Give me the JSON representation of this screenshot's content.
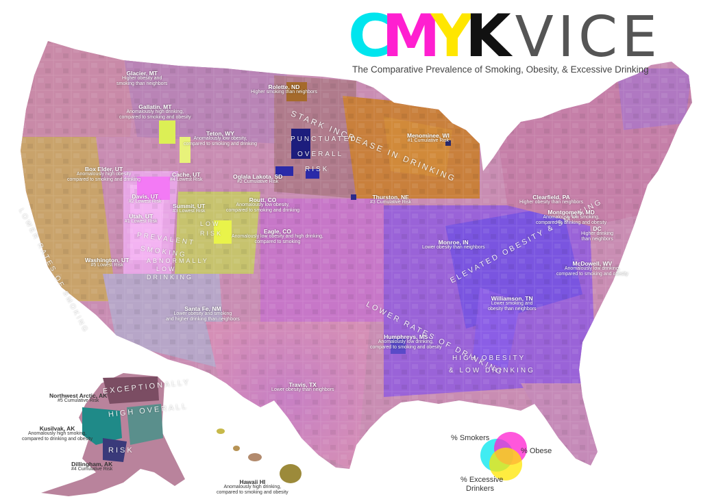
{
  "title": {
    "logo_c": "C",
    "logo_m": "M",
    "logo_y": "Y",
    "logo_k": "K",
    "logo_vice": "VICE",
    "subtitle": "The Comparative Prevalence of Smoking, Obesity, & Excessive Drinking"
  },
  "colors": {
    "cyan": "#00e5ee",
    "magenta": "#ff1fd0",
    "yellow": "#ffe600",
    "black": "#111111",
    "ocean": "#ffffff",
    "midwest_orange": "#c8742f",
    "southeast_purple": "#8a4fd8"
  },
  "annotations": [
    {
      "title": "Glacier, MT",
      "lines": [
        "Higher obesity and",
        "smoking than neighbors"
      ]
    },
    {
      "title": "Gallatin, MT",
      "lines": [
        "Anomalously high drinking,",
        "compared to smoking and obesity"
      ]
    },
    {
      "title": "Rolette, ND",
      "lines": [
        "Higher smoking than neighbors"
      ]
    },
    {
      "title": "Teton, WY",
      "lines": [
        "Anomalously low obesity,",
        "compared to smoking and drinking"
      ]
    },
    {
      "title": "Menominee, WI",
      "lines": [
        "#1 Cumulative Risk"
      ]
    },
    {
      "title": "Box Elder, UT",
      "lines": [
        "Anomalously high obesity",
        "compared to smoking and drinking"
      ]
    },
    {
      "title": "Cache, UT",
      "lines": [
        "#4 Lowest Risk"
      ]
    },
    {
      "title": "Oglala Lakota, SD",
      "lines": [
        "#2 Cumulative Risk"
      ]
    },
    {
      "title": "Davis, UT",
      "lines": [
        "#2 Lowest Risk"
      ]
    },
    {
      "title": "Summit, UT",
      "lines": [
        "#3 Lowest Risk"
      ]
    },
    {
      "title": "Routt, CO",
      "lines": [
        "Anomalously low obesity,",
        "compared to smoking and drinking"
      ]
    },
    {
      "title": "Thurston, NE",
      "lines": [
        "#3 Cumulative Risk"
      ]
    },
    {
      "title": "Utah, UT",
      "lines": [
        "#1 Lowest Risk"
      ]
    },
    {
      "title": "Eagle, CO",
      "lines": [
        "Anomalously low obesity and high drinking,",
        "compared to smoking"
      ]
    },
    {
      "title": "Clearfield, PA",
      "lines": [
        "Higher obesity than neighbors"
      ]
    },
    {
      "title": "Montgomery, MD",
      "lines": [
        "Anomalously low smoking,",
        "compared to drinking and obesity"
      ]
    },
    {
      "title": "DC",
      "lines": [
        "Higher drinking",
        "than neighbors"
      ]
    },
    {
      "title": "Washington, UT",
      "lines": [
        "#5 Lowest Risk"
      ]
    },
    {
      "title": "Monroe, IN",
      "lines": [
        "Lower obesity than neighbors"
      ]
    },
    {
      "title": "McDowell, WV",
      "lines": [
        "Anomalously low drinking,",
        "compared to smoking and obesity"
      ]
    },
    {
      "title": "Santa Fe, NM",
      "lines": [
        "Lower obesity and smoking",
        "and higher drinking than neighbors"
      ]
    },
    {
      "title": "Williamson, TN",
      "lines": [
        "Lower smoking and",
        "obesity than neighbors"
      ]
    },
    {
      "title": "Humphreys, MS",
      "lines": [
        "Anomalously low drinking,",
        "compared to smoking and obesity"
      ]
    },
    {
      "title": "Travis, TX",
      "lines": [
        "Lower obesity than neighbors"
      ]
    },
    {
      "title": "Northwest Arctic, AK",
      "lines": [
        "#5 Cumulative Risk"
      ]
    },
    {
      "title": "Kusilvak, AK",
      "lines": [
        "Anomalously high smoking,",
        "compared to drinking and obesity"
      ]
    },
    {
      "title": "Dillingham, AK",
      "lines": [
        "#4 Cumulative Risk"
      ]
    },
    {
      "title": "Hawaii HI",
      "lines": [
        "Anomalously high drinking,",
        "compared to smoking and obesity"
      ]
    }
  ],
  "regions": [
    "STARK INCREASE IN DRINKING",
    "PUNCTUATED OVERALL RISK",
    "LOWER RATES OF SMOKING",
    "PREVALENT SMOKING",
    "LOW RISK",
    "ABNORMALLY LOW DRINKING",
    "ELEVATED OBESITY & SMOKING",
    "LOWER RATES OF DRINKING",
    "HIGH OBESITY & LOW DRINKING",
    "EXCEPTIONALLY HIGH OVERALL RISK"
  ],
  "region_words": {
    "stark": "STARK INCREASE IN DRINKING",
    "punct1": "PUNCTUATED",
    "punct2": "OVERALL",
    "punct3": "RISK",
    "lower_smoking": "LOWER RATES OF SMOKING",
    "prev1": "PREVALENT",
    "prev2": "SMOKING",
    "lowrisk1": "LOW",
    "lowrisk2": "RISK",
    "abn1": "ABNORMALLY",
    "abn2": "LOW",
    "abn3": "DRINKING",
    "elevated": "ELEVATED OBESITY & SMOKING",
    "lower_drinking": "LOWER RATES OF DRINKING",
    "high1": "HIGH OBESITY",
    "high2": "& LOW DRINKING",
    "exc1": "EXCEPTIONALLY",
    "exc2": "HIGH OVERALL",
    "exc3": "RISK"
  },
  "legend": {
    "smokers": "% Smokers",
    "obese": "% Obese",
    "drinkers_1": "% Excessive",
    "drinkers_2": "Drinkers"
  }
}
